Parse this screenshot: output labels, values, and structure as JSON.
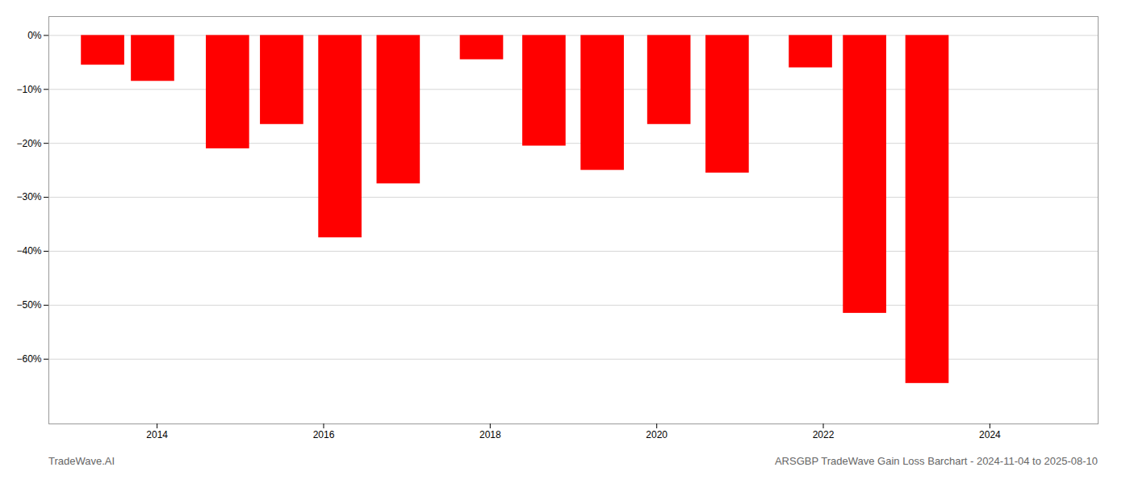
{
  "chart_data": {
    "type": "bar",
    "title": "ARSGBP TradeWave Gain Loss Barchart - 2024-11-04 to 2025-08-10",
    "annotations": [
      "TradeWave.AI"
    ],
    "x": [
      2013.35,
      2013.95,
      2014.85,
      2015.5,
      2016.2,
      2016.9,
      2017.9,
      2018.65,
      2019.35,
      2020.15,
      2020.85,
      2021.85,
      2022.5,
      2023.25
    ],
    "values": [
      -5.5,
      -8.5,
      -21.0,
      -16.5,
      -37.5,
      -27.5,
      -4.5,
      -20.5,
      -25.0,
      -16.5,
      -25.5,
      -6.0,
      -51.5,
      -64.5
    ],
    "color": "#ff0000",
    "xlim": [
      2012.7,
      2025.3
    ],
    "xticks": [
      2014,
      2016,
      2018,
      2020,
      2022,
      2024
    ],
    "ylim": [
      -72,
      3.5
    ],
    "yticks": [
      {
        "value": 0,
        "label": "0%"
      },
      {
        "value": -10,
        "label": "−10%"
      },
      {
        "value": -20,
        "label": "−20%"
      },
      {
        "value": -30,
        "label": "−30%"
      },
      {
        "value": -40,
        "label": "−40%"
      },
      {
        "value": -50,
        "label": "−50%"
      },
      {
        "value": -60,
        "label": "−60%"
      }
    ],
    "grid": true
  }
}
